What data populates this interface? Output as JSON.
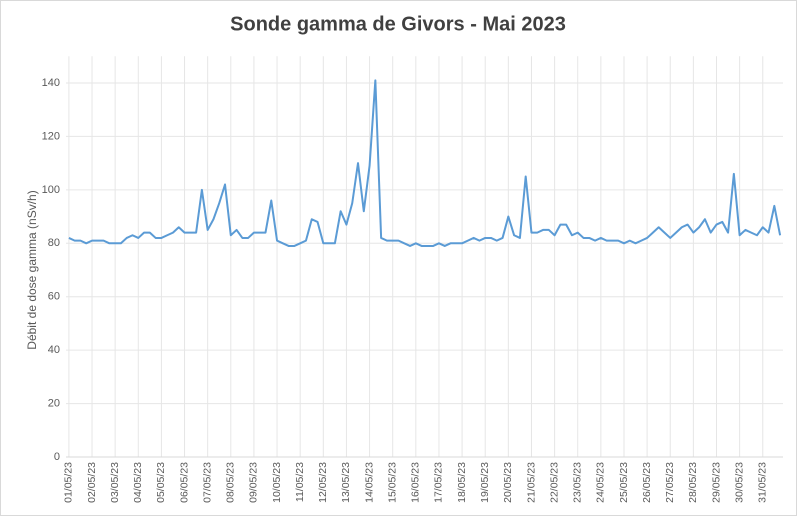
{
  "chart_data": {
    "type": "line",
    "title": "Sonde gamma de Givors - Mai 2023",
    "y_label": "Débit de dose gamma (nSv/h)",
    "categories": [
      "01/05/23",
      null,
      null,
      null,
      "02/05/23",
      null,
      null,
      null,
      "03/05/23",
      null,
      null,
      null,
      "04/05/23",
      null,
      null,
      null,
      "05/05/23",
      null,
      null,
      null,
      "06/05/23",
      null,
      null,
      null,
      "07/05/23",
      null,
      null,
      null,
      "08/05/23",
      null,
      null,
      null,
      "09/05/23",
      null,
      null,
      null,
      "10/05/23",
      null,
      null,
      null,
      "11/05/23",
      null,
      null,
      null,
      "12/05/23",
      null,
      null,
      null,
      "13/05/23",
      null,
      null,
      null,
      "14/05/23",
      null,
      null,
      null,
      "15/05/23",
      null,
      null,
      null,
      "16/05/23",
      null,
      null,
      null,
      "17/05/23",
      null,
      null,
      null,
      "18/05/23",
      null,
      null,
      null,
      "19/05/23",
      null,
      null,
      null,
      "20/05/23",
      null,
      null,
      null,
      "21/05/23",
      null,
      null,
      null,
      "22/05/23",
      null,
      null,
      null,
      "23/05/23",
      null,
      null,
      null,
      "24/05/23",
      null,
      null,
      null,
      "25/05/23",
      null,
      null,
      null,
      "26/05/23",
      null,
      null,
      null,
      "27/05/23",
      null,
      null,
      null,
      "28/05/23",
      null,
      null,
      null,
      "29/05/23",
      null,
      null,
      null,
      "30/05/23",
      null,
      null,
      null,
      "31/05/23",
      null,
      null,
      null
    ],
    "values": [
      82,
      81,
      81,
      80,
      81,
      81,
      81,
      80,
      80,
      80,
      82,
      83,
      82,
      84,
      84,
      82,
      82,
      83,
      84,
      86,
      84,
      84,
      84,
      100,
      85,
      89,
      95,
      102,
      83,
      85,
      82,
      82,
      84,
      84,
      84,
      96,
      81,
      80,
      79,
      79,
      80,
      81,
      89,
      88,
      80,
      80,
      80,
      92,
      87,
      95,
      110,
      92,
      109,
      141,
      82,
      81,
      81,
      81,
      80,
      79,
      80,
      79,
      79,
      79,
      80,
      79,
      80,
      80,
      80,
      81,
      82,
      81,
      82,
      82,
      81,
      82,
      90,
      83,
      82,
      105,
      84,
      84,
      85,
      85,
      83,
      87,
      87,
      83,
      84,
      82,
      82,
      81,
      82,
      81,
      81,
      81,
      80,
      81,
      80,
      81,
      82,
      84,
      86,
      84,
      82,
      84,
      86,
      87,
      84,
      86,
      89,
      84,
      87,
      88,
      84,
      106,
      83,
      85,
      84,
      83,
      86,
      84,
      94,
      83
    ],
    "color": "#5b9bd5",
    "ylim": [
      0,
      150
    ],
    "yticks": [
      0,
      20,
      40,
      60,
      80,
      100,
      120,
      140
    ],
    "grid": true
  }
}
